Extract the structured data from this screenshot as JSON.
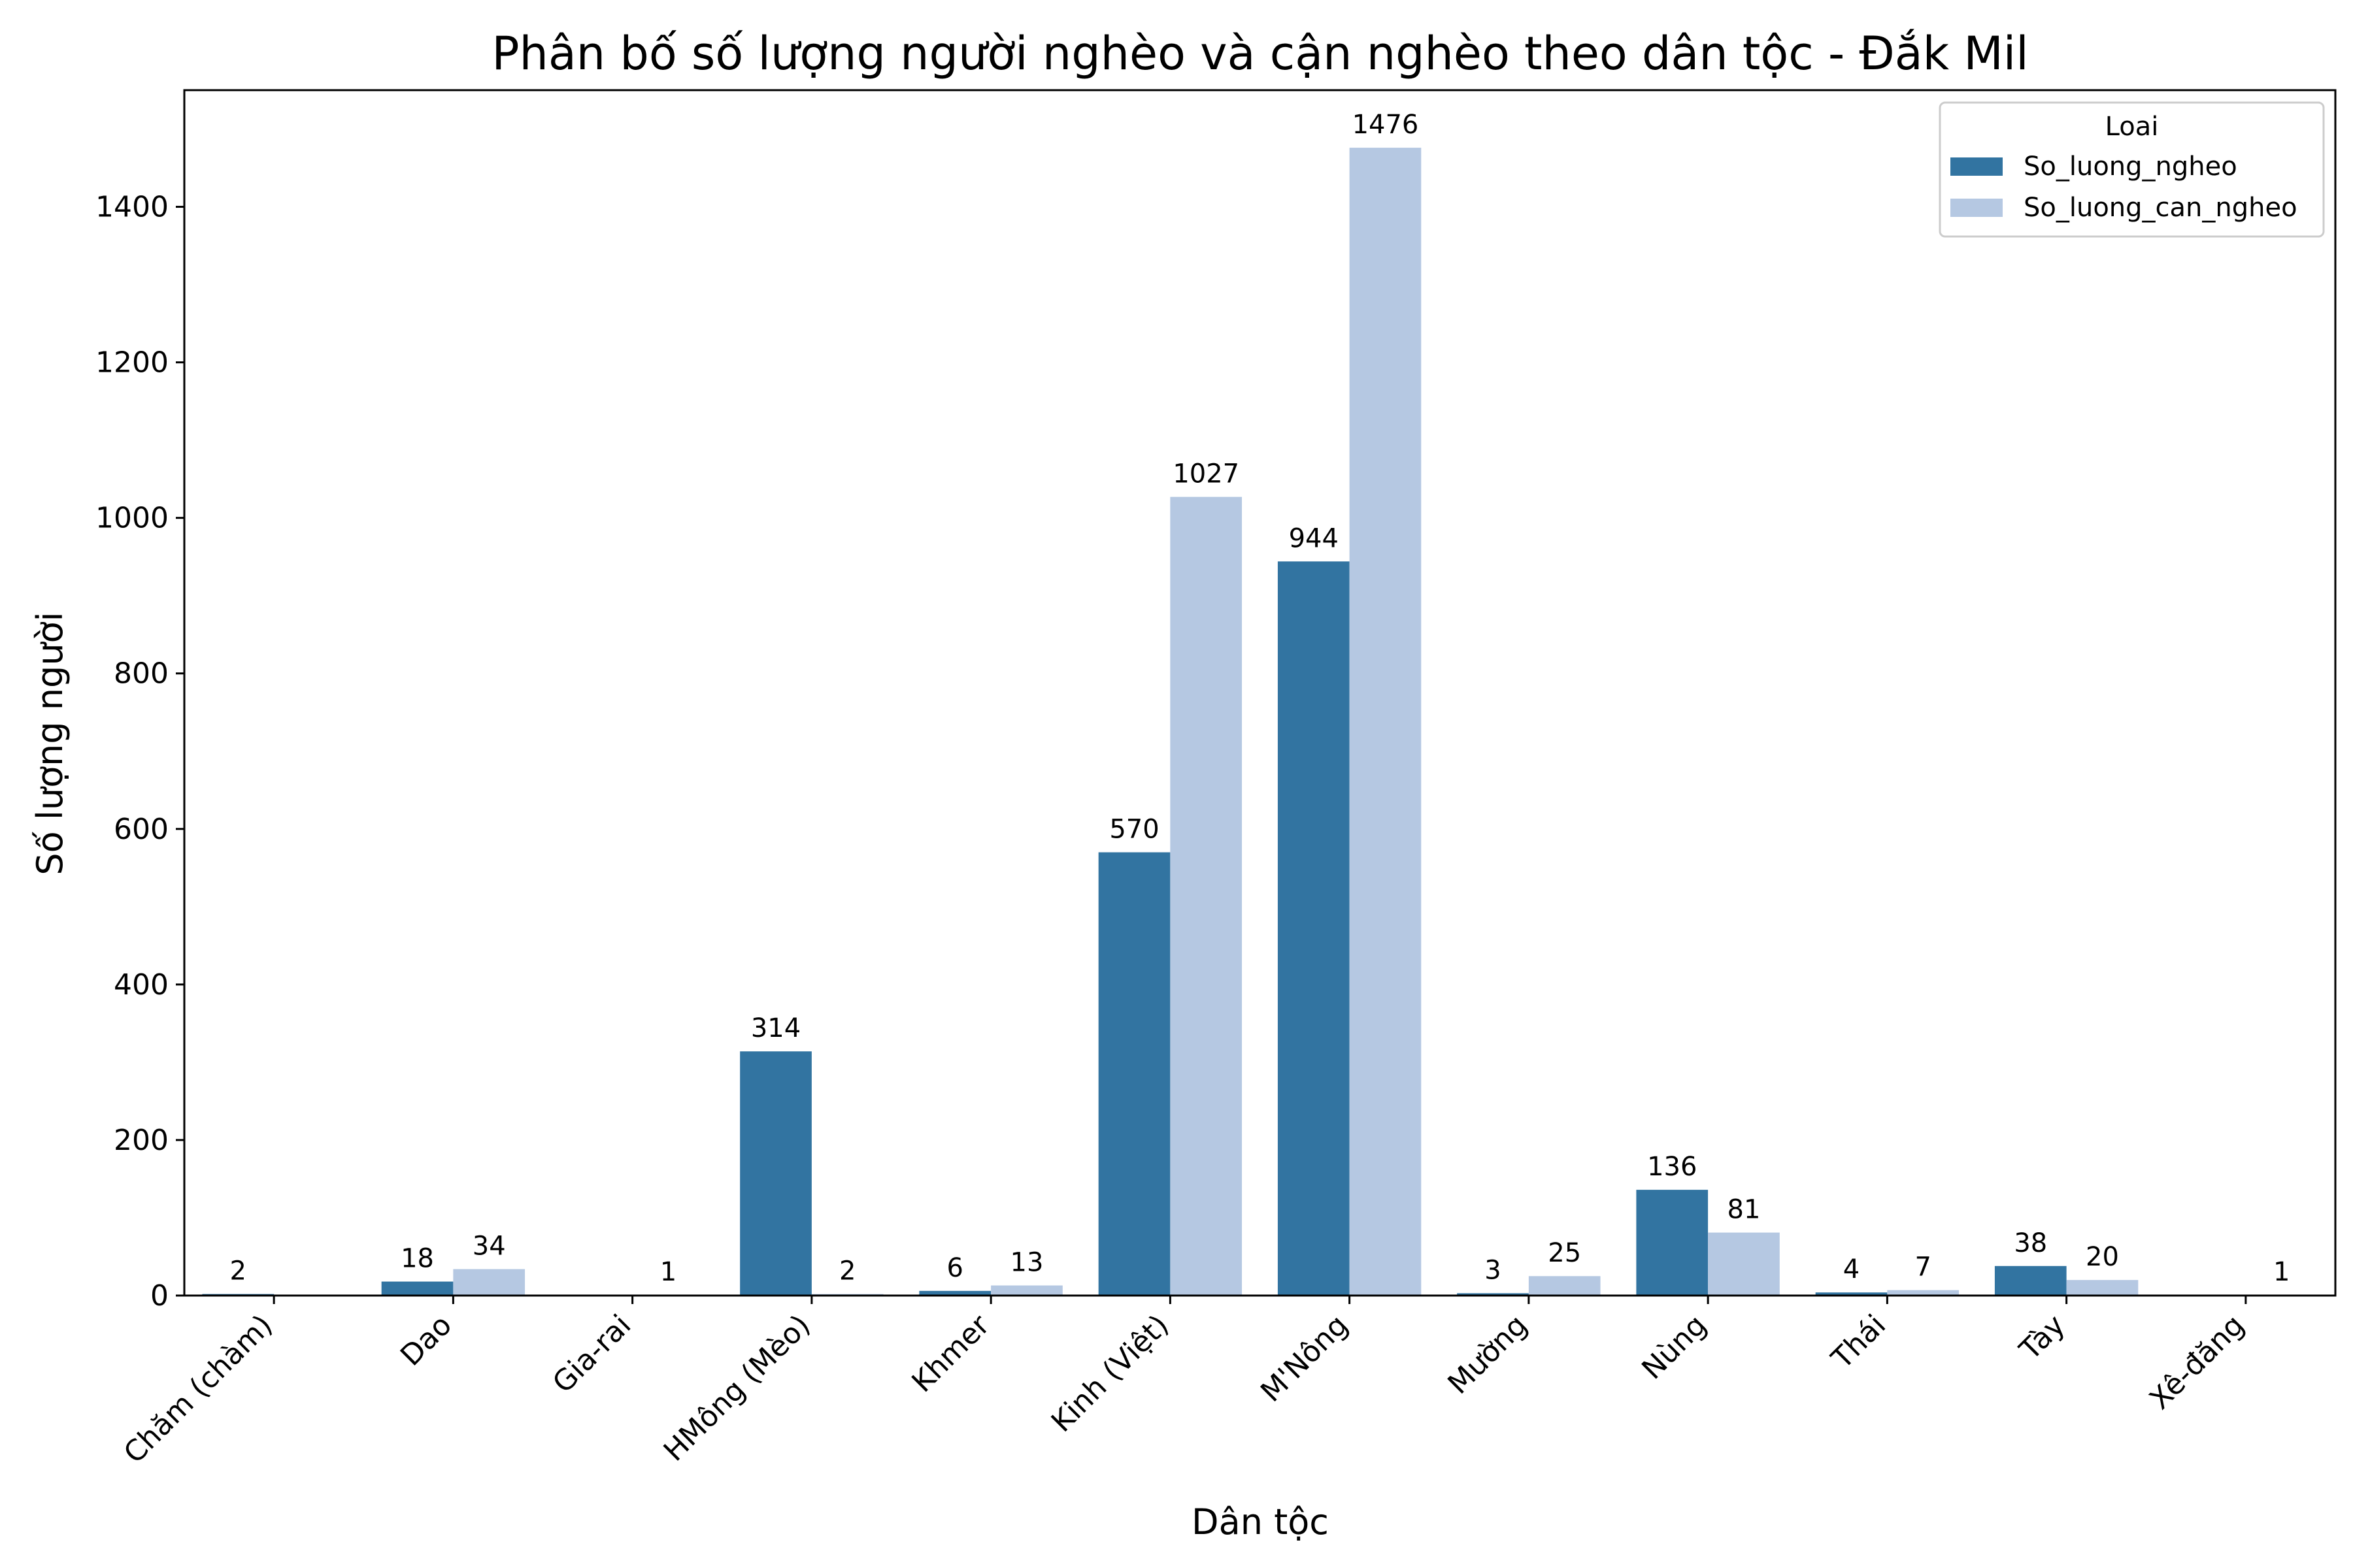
{
  "chart_data": {
    "type": "bar",
    "title": "Phân bố số lượng người nghèo và cận nghèo theo dân tộc - Đắk Mil",
    "xlabel": "Dân tộc",
    "ylabel": "Số lượng người",
    "ylim": [
      0,
      1550
    ],
    "yticks": [
      0,
      200,
      400,
      600,
      800,
      1000,
      1200,
      1400
    ],
    "yticks_labels": [
      "0",
      "200",
      "400",
      "600",
      "800",
      "1000",
      "1200",
      "1400"
    ],
    "grid": false,
    "legend_position": "top-right",
    "legend_title": "Loai",
    "categories": [
      "Chăm (chàm)",
      "Dao",
      "Gia-rai",
      "HMông (Mèo)",
      "Khmer",
      "Kinh (Việt)",
      "M'Nông",
      "Mường",
      "Nùng",
      "Thái",
      "Tày",
      "Xê-đăng"
    ],
    "series": [
      {
        "name": "So_luong_ngheo",
        "color": "#3274a1",
        "values": [
          2,
          18,
          null,
          314,
          6,
          570,
          944,
          3,
          136,
          4,
          38,
          null
        ],
        "labels": [
          "2",
          "18",
          "",
          "314",
          "6",
          "570",
          "944",
          "3",
          "136",
          "4",
          "38",
          ""
        ]
      },
      {
        "name": "So_luong_can_ngheo",
        "color": "#b5c8e2",
        "values": [
          null,
          34,
          1,
          2,
          13,
          1027,
          1476,
          25,
          81,
          7,
          20,
          1
        ],
        "labels": [
          "",
          "34",
          "1",
          "2",
          "13",
          "1027",
          "1476",
          "25",
          "81",
          "7",
          "20",
          "1"
        ]
      }
    ]
  }
}
